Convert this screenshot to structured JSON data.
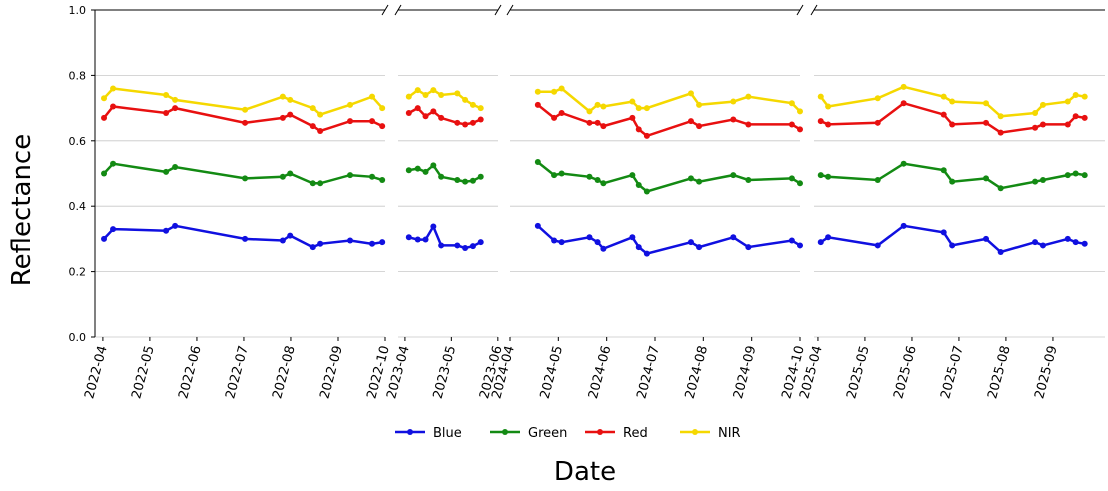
{
  "chart_data": {
    "type": "line",
    "ylabel": "Reflectance",
    "xlabel": "Date",
    "ylim": [
      0,
      1
    ],
    "yticks": [
      {
        "value": 0,
        "label": "0.0"
      },
      {
        "value": 0.2,
        "label": "0.2"
      },
      {
        "value": 0.4,
        "label": "0.4"
      },
      {
        "value": 0.6,
        "label": "0.6"
      },
      {
        "value": 0.8,
        "label": "0.8"
      },
      {
        "value": 1,
        "label": "1.0"
      }
    ],
    "grid": true,
    "legend": "bottom",
    "series": [
      {
        "name": "Blue",
        "color": "#1010e0"
      },
      {
        "name": "Green",
        "color": "#138a13"
      },
      {
        "name": "Red",
        "color": "#e81010"
      },
      {
        "name": "NIR",
        "color": "#f5d800"
      }
    ],
    "panels": [
      {
        "xlim": [
          2022.236,
          2022.75
        ],
        "xticks": [
          {
            "value": 2022.25,
            "label": "2022-04"
          },
          {
            "value": 2022.3333,
            "label": "2022-05"
          },
          {
            "value": 2022.4167,
            "label": "2022-06"
          },
          {
            "value": 2022.5,
            "label": "2022-07"
          },
          {
            "value": 2022.5833,
            "label": "2022-08"
          },
          {
            "value": 2022.6667,
            "label": "2022-09"
          },
          {
            "value": 2022.75,
            "label": "2022-10"
          }
        ],
        "x": [
          2022.252,
          2022.268,
          2022.362,
          2022.378,
          2022.502,
          2022.569,
          2022.582,
          2022.622,
          2022.635,
          2022.688,
          2022.727,
          2022.745
        ],
        "values": [
          [
            0.3,
            0.33,
            0.325,
            0.34,
            0.3,
            0.295,
            0.31,
            0.275,
            0.285,
            0.295,
            0.285,
            0.29
          ],
          [
            0.5,
            0.53,
            0.505,
            0.52,
            0.485,
            0.49,
            0.5,
            0.47,
            0.47,
            0.495,
            0.49,
            0.48
          ],
          [
            0.67,
            0.705,
            0.685,
            0.7,
            0.655,
            0.67,
            0.68,
            0.645,
            0.63,
            0.66,
            0.66,
            0.645
          ],
          [
            0.73,
            0.76,
            0.74,
            0.725,
            0.695,
            0.735,
            0.725,
            0.7,
            0.68,
            0.71,
            0.735,
            0.7
          ]
        ]
      },
      {
        "xlim": [
          2023.2376,
          2023.417
        ],
        "xticks": [
          {
            "value": 2023.25,
            "label": "2023-04"
          },
          {
            "value": 2023.3333,
            "label": "2023-05"
          },
          {
            "value": 2023.4167,
            "label": "2023-06"
          }
        ],
        "x": [
          2023.257,
          2023.273,
          2023.287,
          2023.301,
          2023.315,
          2023.344,
          2023.358,
          2023.372,
          2023.386
        ],
        "values": [
          [
            0.305,
            0.298,
            0.298,
            0.338,
            0.28,
            0.28,
            0.272,
            0.278,
            0.29
          ],
          [
            0.51,
            0.515,
            0.505,
            0.525,
            0.49,
            0.48,
            0.475,
            0.478,
            0.49
          ],
          [
            0.685,
            0.7,
            0.675,
            0.69,
            0.67,
            0.655,
            0.65,
            0.655,
            0.665
          ],
          [
            0.735,
            0.755,
            0.74,
            0.755,
            0.74,
            0.745,
            0.725,
            0.71,
            0.7
          ]
        ]
      },
      {
        "xlim": [
          2024.25,
          2024.75
        ],
        "xticks": [
          {
            "value": 2024.25,
            "label": "2024-04"
          },
          {
            "value": 2024.3333,
            "label": "2024-05"
          },
          {
            "value": 2024.4167,
            "label": "2024-06"
          },
          {
            "value": 2024.5,
            "label": "2024-07"
          },
          {
            "value": 2024.5833,
            "label": "2024-08"
          },
          {
            "value": 2024.6667,
            "label": "2024-09"
          },
          {
            "value": 2024.75,
            "label": "2024-10"
          }
        ],
        "x": [
          2024.298,
          2024.326,
          2024.339,
          2024.387,
          2024.401,
          2024.411,
          2024.461,
          2024.472,
          2024.486,
          2024.562,
          2024.576,
          2024.635,
          2024.661,
          2024.736,
          2024.75
        ],
        "values": [
          [
            0.34,
            0.295,
            0.29,
            0.305,
            0.29,
            0.27,
            0.305,
            0.275,
            0.255,
            0.29,
            0.275,
            0.305,
            0.275,
            0.295,
            0.28
          ],
          [
            0.535,
            0.495,
            0.5,
            0.49,
            0.48,
            0.47,
            0.495,
            0.465,
            0.445,
            0.485,
            0.475,
            0.495,
            0.48,
            0.485,
            0.47
          ],
          [
            0.71,
            0.67,
            0.685,
            0.655,
            0.655,
            0.645,
            0.67,
            0.635,
            0.615,
            0.66,
            0.645,
            0.665,
            0.65,
            0.65,
            0.635
          ],
          [
            0.75,
            0.75,
            0.76,
            0.69,
            0.71,
            0.705,
            0.72,
            0.7,
            0.7,
            0.745,
            0.71,
            0.72,
            0.735,
            0.715,
            0.69
          ]
        ]
      },
      {
        "xlim": [
          2025.243,
          2025.759
        ],
        "xticks": [
          {
            "value": 2025.25,
            "label": "2025-04"
          },
          {
            "value": 2025.3333,
            "label": "2025-05"
          },
          {
            "value": 2025.4167,
            "label": "2025-06"
          },
          {
            "value": 2025.5,
            "label": "2025-07"
          },
          {
            "value": 2025.5833,
            "label": "2025-08"
          },
          {
            "value": 2025.6667,
            "label": "2025-09"
          }
        ],
        "x": [
          2025.255,
          2025.268,
          2025.356,
          2025.402,
          2025.473,
          2025.488,
          2025.548,
          2025.574,
          2025.635,
          2025.649,
          2025.693,
          2025.707,
          2025.723
        ],
        "values": [
          [
            0.29,
            0.305,
            0.28,
            0.34,
            0.32,
            0.28,
            0.3,
            0.26,
            0.29,
            0.28,
            0.3,
            0.29,
            0.285
          ],
          [
            0.495,
            0.49,
            0.48,
            0.53,
            0.51,
            0.475,
            0.485,
            0.455,
            0.475,
            0.48,
            0.495,
            0.5,
            0.495
          ],
          [
            0.66,
            0.65,
            0.655,
            0.715,
            0.68,
            0.65,
            0.655,
            0.625,
            0.64,
            0.65,
            0.65,
            0.675,
            0.67
          ],
          [
            0.735,
            0.705,
            0.73,
            0.765,
            0.735,
            0.72,
            0.715,
            0.675,
            0.685,
            0.71,
            0.72,
            0.74,
            0.735
          ]
        ]
      }
    ]
  }
}
